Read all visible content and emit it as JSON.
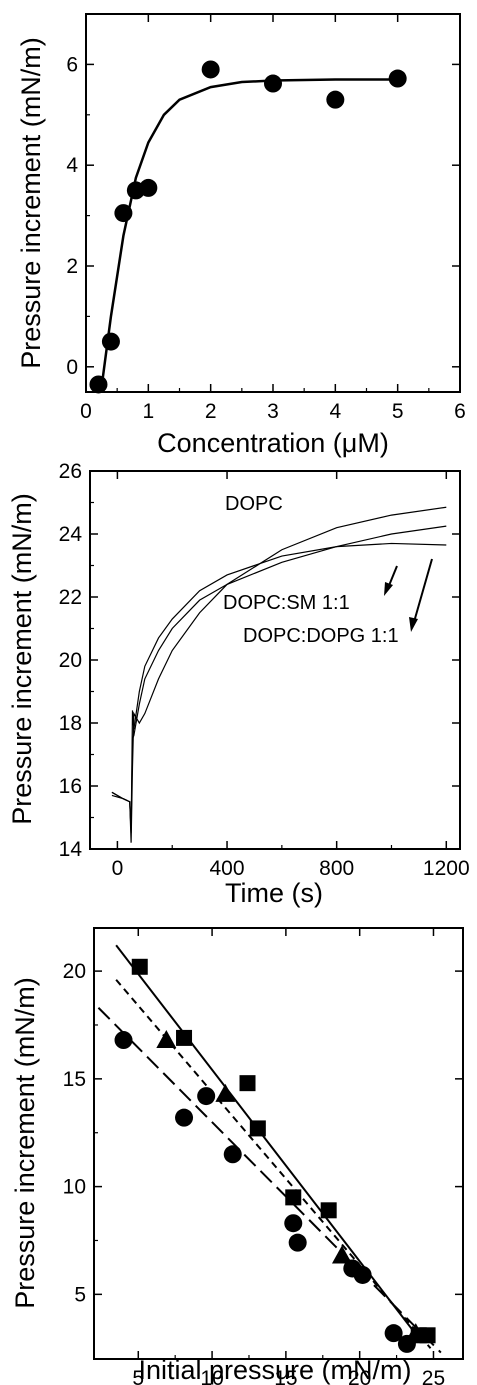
{
  "chart_data": [
    {
      "type": "scatter",
      "xlabel": "Concentration (μM)",
      "ylabel": "Pressure increment (mN/m)",
      "xlim": [
        0,
        6
      ],
      "ylim": [
        -0.5,
        7
      ],
      "xticks": [
        0,
        1,
        2,
        3,
        4,
        5,
        6
      ],
      "yticks": [
        0,
        2,
        4,
        6
      ],
      "x_tick_labels": [
        "0",
        "1",
        "2",
        "3",
        "4",
        "5",
        "6"
      ],
      "y_tick_labels": [
        "0",
        "2",
        "4",
        "6"
      ],
      "series": [
        {
          "marker": "circle",
          "x": [
            0.2,
            0.4,
            0.6,
            0.8,
            1.0,
            2.0,
            3.0,
            4.0,
            5.0
          ],
          "y": [
            -0.35,
            0.5,
            3.05,
            3.5,
            3.55,
            5.9,
            5.62,
            5.3,
            5.72
          ]
        }
      ],
      "fit_line": {
        "x": [
          0.25,
          0.4,
          0.6,
          0.8,
          1.0,
          1.25,
          1.5,
          2.0,
          2.5,
          3.0,
          4.0,
          5.0
        ],
        "y": [
          -0.4,
          1.0,
          2.6,
          3.75,
          4.45,
          5.0,
          5.3,
          5.55,
          5.65,
          5.68,
          5.7,
          5.7
        ]
      }
    },
    {
      "type": "line",
      "xlabel": "Time (s)",
      "ylabel": "Pressure increment (mN/m)",
      "xlim": [
        -100,
        1250
      ],
      "ylim": [
        14,
        26
      ],
      "xticks": [
        0,
        400,
        800,
        1200
      ],
      "yticks": [
        14,
        16,
        18,
        20,
        22,
        24,
        26
      ],
      "x_tick_labels": [
        "0",
        "400",
        "800",
        "1200"
      ],
      "y_tick_labels": [
        "14",
        "16",
        "18",
        "20",
        "22",
        "24",
        "26"
      ],
      "series": [
        {
          "name": "DOPC",
          "x": [
            -20,
            20,
            45,
            50,
            55,
            60,
            80,
            100,
            150,
            200,
            300,
            400,
            600,
            800,
            1000,
            1200
          ],
          "y": [
            15.7,
            15.6,
            15.5,
            14.2,
            16.6,
            18.3,
            18.0,
            18.3,
            19.4,
            20.3,
            21.5,
            22.4,
            23.5,
            24.2,
            24.6,
            24.85
          ]
        },
        {
          "name": "DOPC:SM 1:1",
          "x": [
            -20,
            20,
            45,
            50,
            55,
            60,
            80,
            100,
            150,
            200,
            300,
            400,
            600,
            800,
            1000,
            1200
          ],
          "y": [
            15.8,
            15.6,
            15.5,
            14.5,
            18.4,
            17.8,
            19.0,
            19.8,
            20.7,
            21.3,
            22.2,
            22.7,
            23.3,
            23.6,
            23.7,
            23.65
          ]
        },
        {
          "name": "DOPC:DOPG 1:1",
          "x": [
            -20,
            20,
            45,
            50,
            55,
            60,
            80,
            100,
            150,
            200,
            300,
            400,
            600,
            800,
            1000,
            1200
          ],
          "y": [
            15.8,
            15.6,
            15.5,
            14.6,
            17.5,
            17.6,
            18.6,
            19.4,
            20.3,
            21.0,
            21.9,
            22.4,
            23.1,
            23.6,
            24.0,
            24.25
          ]
        }
      ],
      "annotations": [
        "DOPC",
        "DOPC:SM 1:1",
        "DOPC:DOPG 1:1"
      ]
    },
    {
      "type": "scatter",
      "xlabel": "Initial pressure (mN/m)",
      "ylabel": "Pressure increment (mN/m)",
      "xlim": [
        2,
        27
      ],
      "ylim": [
        2,
        22
      ],
      "xticks": [
        5,
        10,
        15,
        20,
        25
      ],
      "yticks": [
        5,
        10,
        15,
        20
      ],
      "x_tick_labels": [
        "5",
        "10",
        "15",
        "20",
        "25"
      ],
      "y_tick_labels": [
        "5",
        "10",
        "15",
        "20"
      ],
      "series": [
        {
          "marker": "square",
          "x": [
            5.1,
            8.1,
            12.4,
            13.1,
            15.5,
            17.9,
            24.0,
            24.6
          ],
          "y": [
            20.2,
            16.9,
            14.8,
            12.7,
            9.5,
            8.9,
            3.1,
            3.1
          ],
          "fit": {
            "x": [
              3.5,
              24.2
            ],
            "y": [
              21.2,
              2.8
            ],
            "style": "solid"
          }
        },
        {
          "marker": "triangle",
          "x": [
            6.9,
            10.9,
            18.8,
            23.8
          ],
          "y": [
            16.8,
            14.3,
            6.8,
            3.2
          ],
          "fit": {
            "x": [
              3.5,
              24.8
            ],
            "y": [
              19.6,
              2.5
            ],
            "style": "short-dash"
          }
        },
        {
          "marker": "circle",
          "x": [
            4.0,
            8.1,
            9.6,
            11.4,
            15.5,
            15.8,
            19.5,
            20.2,
            22.3,
            23.2
          ],
          "y": [
            16.8,
            13.2,
            14.2,
            11.5,
            8.3,
            7.4,
            6.2,
            5.9,
            3.2,
            2.7
          ],
          "fit": {
            "x": [
              2.3,
              25.5
            ],
            "y": [
              18.3,
              2.3
            ],
            "style": "long-dash"
          }
        }
      ]
    }
  ]
}
